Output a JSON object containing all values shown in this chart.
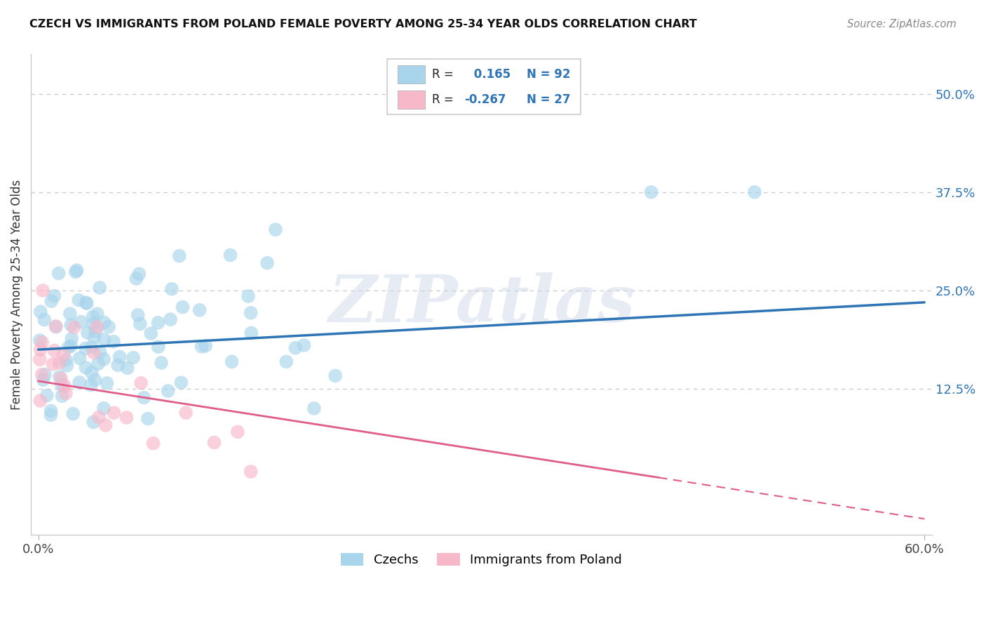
{
  "title": "CZECH VS IMMIGRANTS FROM POLAND FEMALE POVERTY AMONG 25-34 YEAR OLDS CORRELATION CHART",
  "source": "Source: ZipAtlas.com",
  "ylabel": "Female Poverty Among 25-34 Year Olds",
  "xlim": [
    0.0,
    0.6
  ],
  "ylim": [
    -0.06,
    0.55
  ],
  "ytick_values": [
    0.125,
    0.25,
    0.375,
    0.5
  ],
  "legend_labels": [
    "Czechs",
    "Immigrants from Poland"
  ],
  "czech_color": "#A8D4EC",
  "polish_color": "#F7B8CA",
  "czech_line_color": "#2E75B6",
  "polish_line_color": "#E05C8A",
  "R_czech": 0.165,
  "N_czech": 92,
  "R_polish": -0.267,
  "N_polish": 27,
  "watermark_text": "ZIPatlas",
  "background_color": "#FFFFFF",
  "grid_color": "#CCCCCC",
  "czech_line_y0": 0.175,
  "czech_line_y1": 0.235,
  "polish_line_y0": 0.135,
  "polish_line_y1": -0.04
}
